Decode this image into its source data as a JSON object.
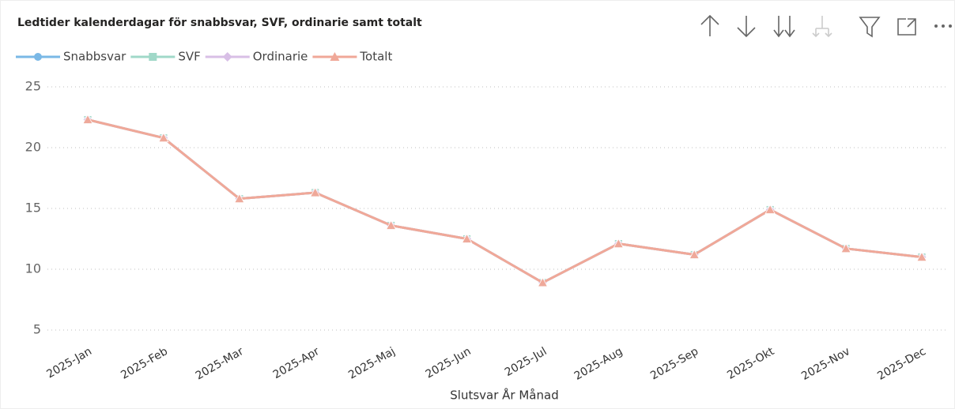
{
  "chart_data": {
    "type": "line",
    "title": "Ledtider kalenderdagar för snabbsvar, SVF, ordinarie samt totalt",
    "x_label": "Slutsvar År Månad",
    "categories": [
      "2025-Jan",
      "2025-Feb",
      "2025-Mar",
      "2025-Apr",
      "2025-Maj",
      "2025-Jun",
      "2025-Jul",
      "2025-Aug",
      "2025-Sep",
      "2025-Okt",
      "2025-Nov",
      "2025-Dec"
    ],
    "series": [
      {
        "name": "Snabbsvar",
        "color": "#7ab8e6",
        "marker": "circle",
        "values": [
          22.3,
          20.8,
          15.8,
          16.3,
          13.6,
          12.5,
          8.9,
          12.1,
          11.2,
          14.9,
          11.7,
          11.0
        ]
      },
      {
        "name": "SVF",
        "color": "#a0d8c8",
        "marker": "square",
        "values": [
          22.3,
          20.8,
          15.8,
          16.3,
          13.6,
          12.5,
          8.9,
          12.1,
          11.2,
          14.9,
          11.7,
          11.0
        ]
      },
      {
        "name": "Ordinarie",
        "color": "#d8bfe6",
        "marker": "diamond",
        "values": [
          22.3,
          20.8,
          15.8,
          16.3,
          13.6,
          12.5,
          8.9,
          12.1,
          11.2,
          14.9,
          11.7,
          11.0
        ]
      },
      {
        "name": "Totalt",
        "color": "#f0a898",
        "marker": "triangle",
        "values": [
          22.3,
          20.8,
          15.8,
          16.3,
          13.6,
          12.5,
          8.9,
          12.1,
          11.2,
          14.9,
          11.7,
          11.0
        ]
      }
    ],
    "ylim": [
      5,
      25
    ],
    "yticks": [
      5,
      10,
      15,
      20,
      25
    ],
    "grid": true,
    "legend": "top-left"
  }
}
